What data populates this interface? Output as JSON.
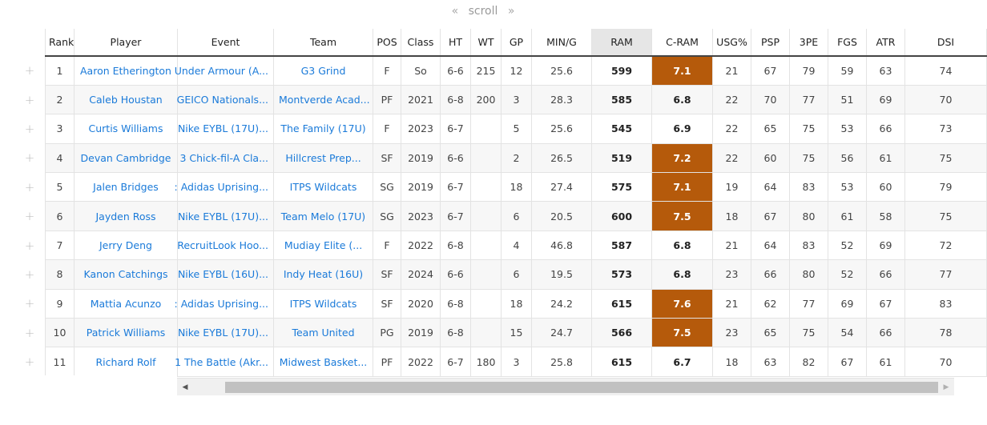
{
  "scroll_hint": {
    "left": "«",
    "label": "scroll",
    "right": "»"
  },
  "expand_symbol": "+",
  "columns": [
    "Rank",
    "Player",
    "Event",
    "Team",
    "POS",
    "Class",
    "HT",
    "WT",
    "GP",
    "MIN/G",
    "RAM",
    "C-RAM",
    "USG%",
    "PSP",
    "3PE",
    "FGS",
    "ATR",
    "DSI"
  ],
  "sorted_column": "RAM",
  "highlight_color": "#b55a0b",
  "link_color": "#1a7ad9",
  "rows": [
    {
      "rank": "1",
      "player": "Aaron Etherington",
      "event": "Under Armour (A...",
      "team": "G3 Grind",
      "pos": "F",
      "class": "So",
      "ht": "6-6",
      "wt": "215",
      "gp": "12",
      "ming": "25.6",
      "ram": "599",
      "cram": "7.1",
      "cram_hl": true,
      "usg": "21",
      "psp": "67",
      "tpe": "79",
      "fgs": "59",
      "atr": "63",
      "dsi": "74"
    },
    {
      "rank": "2",
      "player": "Caleb Houstan",
      "event": "GEICO Nationals...",
      "team": "Montverde Acad...",
      "pos": "PF",
      "class": "2021",
      "ht": "6-8",
      "wt": "200",
      "gp": "3",
      "ming": "28.3",
      "ram": "585",
      "cram": "6.8",
      "cram_hl": false,
      "usg": "22",
      "psp": "70",
      "tpe": "77",
      "fgs": "51",
      "atr": "69",
      "dsi": "70"
    },
    {
      "rank": "3",
      "player": "Curtis Williams",
      "event": "Nike EYBL (17U)...",
      "team": "The Family (17U)",
      "pos": "F",
      "class": "2023",
      "ht": "6-7",
      "wt": "",
      "gp": "5",
      "ming": "25.6",
      "ram": "545",
      "cram": "6.9",
      "cram_hl": false,
      "usg": "22",
      "psp": "65",
      "tpe": "75",
      "fgs": "53",
      "atr": "66",
      "dsi": "73"
    },
    {
      "rank": "4",
      "player": "Devan Cambridge",
      "event": "3 Chick-fil-A Cla...",
      "team": "Hillcrest Prep...",
      "pos": "SF",
      "class": "2019",
      "ht": "6-6",
      "wt": "",
      "gp": "2",
      "ming": "26.5",
      "ram": "519",
      "cram": "7.2",
      "cram_hl": true,
      "usg": "22",
      "psp": "60",
      "tpe": "75",
      "fgs": "56",
      "atr": "61",
      "dsi": "75"
    },
    {
      "rank": "5",
      "player": "Jalen Bridges",
      "event": ": Adidas Uprising...",
      "team": "ITPS Wildcats",
      "pos": "SG",
      "class": "2019",
      "ht": "6-7",
      "wt": "",
      "gp": "18",
      "ming": "27.4",
      "ram": "575",
      "cram": "7.1",
      "cram_hl": true,
      "usg": "19",
      "psp": "64",
      "tpe": "83",
      "fgs": "53",
      "atr": "60",
      "dsi": "79"
    },
    {
      "rank": "6",
      "player": "Jayden Ross",
      "event": "Nike EYBL (17U)...",
      "team": "Team Melo (17U)",
      "pos": "SG",
      "class": "2023",
      "ht": "6-7",
      "wt": "",
      "gp": "6",
      "ming": "20.5",
      "ram": "600",
      "cram": "7.5",
      "cram_hl": true,
      "usg": "18",
      "psp": "67",
      "tpe": "80",
      "fgs": "61",
      "atr": "58",
      "dsi": "75"
    },
    {
      "rank": "7",
      "player": "Jerry Deng",
      "event": "RecruitLook Hoo...",
      "team": "Mudiay Elite (...",
      "pos": "F",
      "class": "2022",
      "ht": "6-8",
      "wt": "",
      "gp": "4",
      "ming": "46.8",
      "ram": "587",
      "cram": "6.8",
      "cram_hl": false,
      "usg": "21",
      "psp": "64",
      "tpe": "83",
      "fgs": "52",
      "atr": "69",
      "dsi": "72"
    },
    {
      "rank": "8",
      "player": "Kanon Catchings",
      "event": "Nike EYBL (16U)...",
      "team": "Indy Heat (16U)",
      "pos": "SF",
      "class": "2024",
      "ht": "6-6",
      "wt": "",
      "gp": "6",
      "ming": "19.5",
      "ram": "573",
      "cram": "6.8",
      "cram_hl": false,
      "usg": "23",
      "psp": "66",
      "tpe": "80",
      "fgs": "52",
      "atr": "66",
      "dsi": "77"
    },
    {
      "rank": "9",
      "player": "Mattia Acunzo",
      "event": ": Adidas Uprising...",
      "team": "ITPS Wildcats",
      "pos": "SF",
      "class": "2020",
      "ht": "6-8",
      "wt": "",
      "gp": "18",
      "ming": "24.2",
      "ram": "615",
      "cram": "7.6",
      "cram_hl": true,
      "usg": "21",
      "psp": "62",
      "tpe": "77",
      "fgs": "69",
      "atr": "67",
      "dsi": "83"
    },
    {
      "rank": "10",
      "player": "Patrick Williams",
      "event": "Nike EYBL (17U)...",
      "team": "Team United",
      "pos": "PG",
      "class": "2019",
      "ht": "6-8",
      "wt": "",
      "gp": "15",
      "ming": "24.7",
      "ram": "566",
      "cram": "7.5",
      "cram_hl": true,
      "usg": "23",
      "psp": "65",
      "tpe": "75",
      "fgs": "54",
      "atr": "66",
      "dsi": "78"
    },
    {
      "rank": "11",
      "player": "Richard Rolf",
      "event": "1 The Battle (Akr...",
      "team": "Midwest Basket...",
      "pos": "PF",
      "class": "2022",
      "ht": "6-7",
      "wt": "180",
      "gp": "3",
      "ming": "25.8",
      "ram": "615",
      "cram": "6.7",
      "cram_hl": false,
      "usg": "18",
      "psp": "63",
      "tpe": "82",
      "fgs": "67",
      "atr": "61",
      "dsi": "70"
    }
  ],
  "hscroll": {
    "left_arrow": "◀",
    "right_arrow": "▶"
  }
}
